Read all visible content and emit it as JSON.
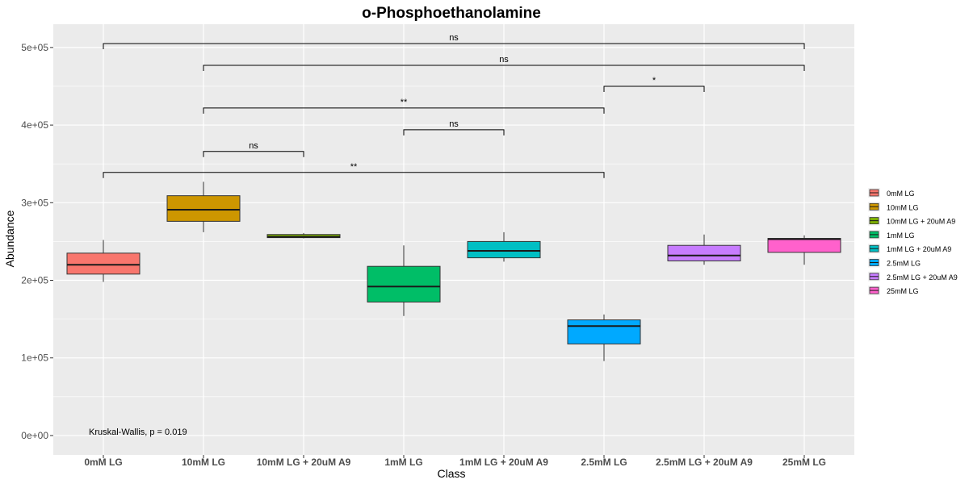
{
  "chart_data": {
    "type": "box",
    "title": "o-Phosphoethanolamine",
    "xlabel": "Class",
    "ylabel": "Abundance",
    "ylim": [
      -25000,
      530000
    ],
    "yticks": [
      0,
      100000,
      200000,
      300000,
      400000,
      500000
    ],
    "ytick_labels": [
      "0e+00",
      "1e+05",
      "2e+05",
      "3e+05",
      "4e+05",
      "5e+05"
    ],
    "grid": true,
    "legend_position": "right",
    "categories": [
      "0mM LG",
      "10mM LG",
      "10mM LG + 20uM A9",
      "1mM LG",
      "1mM LG + 20uM A9",
      "2.5mM LG",
      "2.5mM LG + 20uM A9",
      "25mM LG"
    ],
    "series": [
      {
        "name": "0mM LG",
        "color": "#F8766D",
        "min": 198000,
        "q1": 208000,
        "median": 220000,
        "q3": 235000,
        "max": 252000
      },
      {
        "name": "10mM LG",
        "color": "#CD9600",
        "min": 262000,
        "q1": 276000,
        "median": 291000,
        "q3": 309000,
        "max": 327000
      },
      {
        "name": "10mM LG + 20uM A9",
        "color": "#7CAE00",
        "min": 254000,
        "q1": 255000,
        "median": 256000,
        "q3": 259000,
        "max": 261000
      },
      {
        "name": "1mM LG",
        "color": "#00BE67",
        "min": 154000,
        "q1": 172000,
        "median": 192000,
        "q3": 218000,
        "max": 245000
      },
      {
        "name": "1mM LG + 20uM A9",
        "color": "#00BFC4",
        "min": 224000,
        "q1": 229000,
        "median": 238000,
        "q3": 250000,
        "max": 262000
      },
      {
        "name": "2.5mM LG",
        "color": "#00A9FF",
        "min": 96000,
        "q1": 118000,
        "median": 141000,
        "q3": 149000,
        "max": 156000
      },
      {
        "name": "2.5mM LG + 20uM A9",
        "color": "#C77CFF",
        "min": 220000,
        "q1": 225000,
        "median": 232000,
        "q3": 245000,
        "max": 259000
      },
      {
        "name": "25mM LG",
        "color": "#FF61CC",
        "min": 220000,
        "q1": 236000,
        "median": 253000,
        "q3": 254000,
        "max": 258000
      }
    ],
    "comparisons": [
      {
        "from": 0,
        "to": 7,
        "y": 505000,
        "label": "ns"
      },
      {
        "from": 1,
        "to": 7,
        "y": 477000,
        "label": "ns"
      },
      {
        "from": 5,
        "to": 6,
        "y": 450000,
        "label": "*"
      },
      {
        "from": 1,
        "to": 5,
        "y": 422000,
        "label": "**"
      },
      {
        "from": 3,
        "to": 4,
        "y": 394000,
        "label": "ns"
      },
      {
        "from": 1,
        "to": 2,
        "y": 366000,
        "label": "ns"
      },
      {
        "from": 0,
        "to": 5,
        "y": 339000,
        "label": "**"
      }
    ],
    "annotation": "Kruskal-Wallis, p = 0.019"
  }
}
